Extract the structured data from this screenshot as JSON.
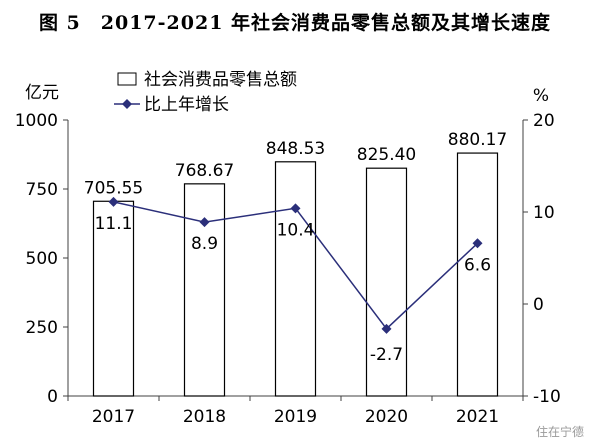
{
  "title": "图 5　2017-2021 年社会消费品零售总额及其增长速度",
  "watermark": "住在宁德",
  "chart_data": {
    "type": "bar",
    "categories": [
      "2017",
      "2018",
      "2019",
      "2020",
      "2021"
    ],
    "y_left": {
      "unit_label": "亿元",
      "lim": [
        0,
        1000
      ],
      "ticks": [
        "0",
        "250",
        "500",
        "750",
        "1000"
      ]
    },
    "y_right": {
      "unit_label": "%",
      "lim": [
        -10,
        20
      ],
      "ticks": [
        "-10",
        "0",
        "10",
        "20"
      ]
    },
    "series": [
      {
        "name": "社会消费品零售总额",
        "kind": "bar",
        "axis": "left",
        "values": [
          705.55,
          768.67,
          848.53,
          825.4,
          880.17
        ],
        "labels": [
          "705.55",
          "768.67",
          "848.53",
          "825.40",
          "880.17"
        ]
      },
      {
        "name": "比上年增长",
        "kind": "line",
        "axis": "right",
        "values": [
          11.1,
          8.9,
          10.4,
          -2.7,
          6.6
        ],
        "labels": [
          "11.1",
          "8.9",
          "10.4",
          "-2.7",
          "6.6"
        ]
      }
    ],
    "legend_position": "top-left",
    "grid": false,
    "colors": {
      "bar_fill": "#ffffff",
      "bar_stroke": "#000000",
      "line": "#2b2f7a",
      "axis": "#404040"
    }
  }
}
